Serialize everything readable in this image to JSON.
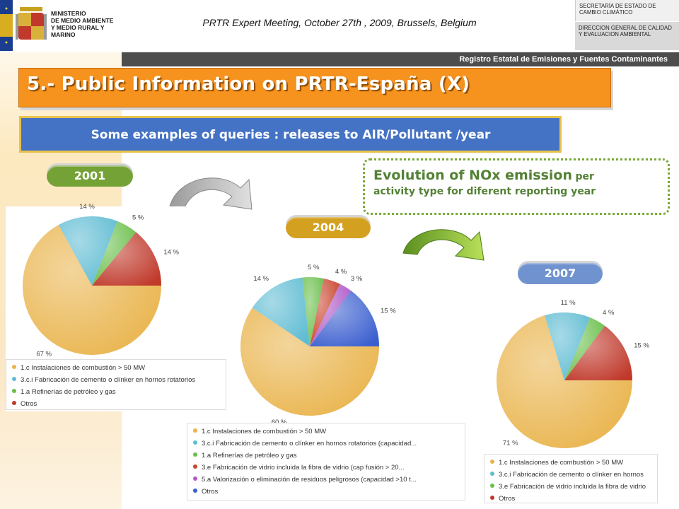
{
  "header": {
    "ministry_lines": [
      "MINISTERIO",
      "DE MEDIO AMBIENTE",
      "Y MEDIO RURAL Y MARINO"
    ],
    "meeting": "PRTR Expert Meeting, October 27th , 2009, Brussels, Belgium",
    "secretaria": "SECRETARÍA DE ESTADO DE CAMBIO CLIMÁTICO",
    "direccion": "DIRECCION GENERAL DE CALIDAD Y EVALUACION AMBIENTAL",
    "registro": "Registro Estatal de Emisiones y Fuentes Contaminantes"
  },
  "title": "5.- Public Information on PRTR-España (X)",
  "subtitle": "Some examples of queries : releases to AIR/Pollutant /year",
  "years": {
    "y2001": "2001",
    "y2004": "2004",
    "y2007": "2007"
  },
  "note": {
    "main": "Evolution of NOx emission",
    "rest_inline": "per",
    "second_line": "activity type for diferent reporting year"
  },
  "colors": {
    "combustion": "#e9b34a",
    "cement": "#5fbcd3",
    "refinery_glass": "#6abf4b",
    "glass_2004": "#c9432c",
    "waste": "#b05ac9",
    "others": "#c0392b",
    "others_blue": "#3b5fcf",
    "accent_orange": "#f6921e",
    "accent_blue": "#4472c4",
    "accent_green": "#74a236"
  },
  "chart_data": [
    {
      "type": "pie",
      "name": "2001",
      "categories": [
        "1.c Instalaciones de combustión > 50 MW",
        "3.c.i Fabricación de cemento o clínker en hornos rotatorios",
        "1.a Refinerías de petróleo y gas",
        "Otros"
      ],
      "values": [
        67,
        14,
        5,
        14
      ],
      "labels": [
        "67 %",
        "14 %",
        "5 %",
        "14 %"
      ]
    },
    {
      "type": "pie",
      "name": "2004",
      "categories": [
        "1.c Instalaciones de combustión > 50 MW",
        "3.c.i Fabricación de cemento o clínker en hornos rotatorios (capacidad...",
        "1.a Refinerías de petróleo y gas",
        "3.e Fabricación de vidrio incluida la fibra de vidrio (cap fusión > 20...",
        "5.a Valorización o eliminación de residuos peligrosos (capacidad >10 t...",
        "Otros"
      ],
      "values": [
        60,
        14,
        5,
        4,
        3,
        15
      ],
      "labels": [
        "60 %",
        "14 %",
        "5 %",
        "4 %",
        "3 %",
        "15 %"
      ]
    },
    {
      "type": "pie",
      "name": "2007",
      "categories": [
        "1.c Instalaciones de combustión > 50 MW",
        "3.c.i Fabricación de cemento o clínker en hornos",
        "3.e Fabricación de vidrio incluida la fibra de vidrio",
        "Otros"
      ],
      "values": [
        71,
        11,
        4,
        15
      ],
      "labels": [
        "71 %",
        "11 %",
        "4 %",
        "15 %"
      ]
    }
  ]
}
